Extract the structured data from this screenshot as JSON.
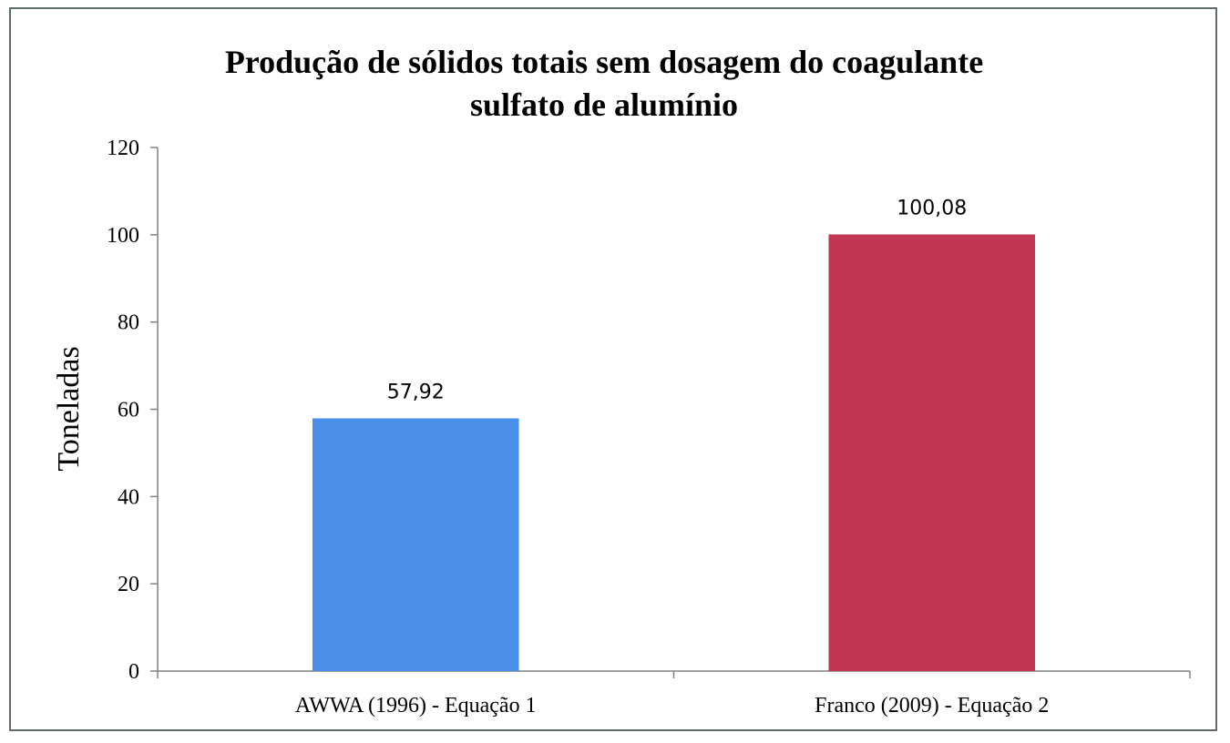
{
  "chart_data": {
    "type": "bar",
    "title_lines": [
      "Produção de sólidos totais sem dosagem do coagulante",
      "sulfato de alumínio"
    ],
    "categories": [
      "AWWA (1996) - Equação 1",
      "Franco (2009) - Equação 2"
    ],
    "values": [
      57.92,
      100.08
    ],
    "data_labels": [
      "57,92",
      "100,08"
    ],
    "colors": [
      "#4a90e8",
      "#c13653"
    ],
    "ylabel": "Toneladas",
    "xlabel": "",
    "ylim": [
      0,
      120
    ],
    "yticks": [
      0,
      20,
      40,
      60,
      80,
      100,
      120
    ],
    "grid": false,
    "legend": "none"
  }
}
